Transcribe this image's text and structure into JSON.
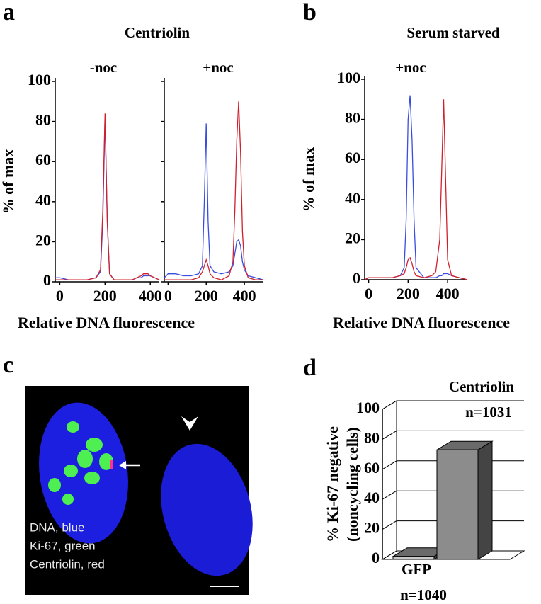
{
  "panel_labels": [
    "a",
    "b",
    "c",
    "d"
  ],
  "image": {
    "captions": [
      "DNA, blue",
      "Ki-67, green",
      "Centriolin, red"
    ]
  },
  "chart_data": [
    {
      "type": "line",
      "title": "Centriolin",
      "subtitle": "-noc",
      "y_label": "% of max",
      "x_label": "Relative DNA fluorescence",
      "x": [
        -20,
        0,
        40,
        80,
        120,
        160,
        180,
        190,
        200,
        210,
        220,
        240,
        280,
        320,
        340,
        360,
        370,
        380,
        390,
        400,
        420,
        440
      ],
      "series": [
        {
          "color": "#3a4de0",
          "values": [
            2,
            2,
            1,
            1,
            1,
            2,
            5,
            30,
            82,
            30,
            4,
            1,
            1,
            1,
            2,
            2,
            3,
            3,
            3,
            3,
            2,
            1
          ]
        },
        {
          "color": "#d0202e",
          "values": [
            1,
            1,
            1,
            1,
            1,
            2,
            6,
            35,
            84,
            30,
            4,
            1,
            1,
            1,
            2,
            3,
            4,
            4,
            4,
            3,
            2,
            1
          ]
        }
      ],
      "xlim": [
        -20,
        440
      ],
      "xticks": [
        0,
        200,
        400
      ],
      "ylim": [
        0,
        100
      ],
      "yticks": [
        0,
        20,
        40,
        60,
        80,
        100
      ]
    },
    {
      "type": "line",
      "subtitle": "+noc",
      "x": [
        -20,
        0,
        40,
        80,
        120,
        160,
        180,
        190,
        200,
        210,
        220,
        240,
        280,
        320,
        340,
        350,
        360,
        370,
        380,
        390,
        400,
        420,
        460,
        500
      ],
      "series": [
        {
          "color": "#3a4de0",
          "values": [
            2,
            4,
            4,
            3,
            3,
            4,
            8,
            40,
            79,
            30,
            8,
            5,
            4,
            5,
            8,
            14,
            20,
            21,
            18,
            10,
            6,
            3,
            2,
            1
          ]
        },
        {
          "color": "#d0202e",
          "values": [
            1,
            1,
            1,
            1,
            1,
            2,
            5,
            8,
            11,
            8,
            4,
            2,
            1,
            3,
            10,
            35,
            70,
            90,
            65,
            25,
            8,
            2,
            1,
            1
          ]
        }
      ],
      "xlim": [
        -20,
        500
      ],
      "xticks": [
        0,
        200,
        400
      ],
      "ylim": [
        0,
        100
      ],
      "yticks": [
        0,
        20,
        40,
        60,
        80,
        100
      ]
    },
    {
      "type": "line",
      "title": "Serum starved",
      "subtitle": "+noc",
      "y_label": "% of max",
      "x_label": "Relative DNA fluorescence",
      "x": [
        -20,
        0,
        40,
        80,
        120,
        160,
        180,
        190,
        200,
        210,
        220,
        230,
        240,
        280,
        320,
        340,
        360,
        370,
        380,
        390,
        400,
        420,
        460,
        500
      ],
      "series": [
        {
          "color": "#3a4de0",
          "values": [
            0,
            1,
            1,
            1,
            1,
            2,
            6,
            30,
            80,
            92,
            70,
            30,
            6,
            1,
            1,
            1,
            2,
            2,
            3,
            3,
            3,
            2,
            1,
            0
          ]
        },
        {
          "color": "#d0202e",
          "values": [
            0,
            1,
            1,
            1,
            1,
            2,
            3,
            6,
            10,
            11,
            8,
            4,
            2,
            1,
            2,
            4,
            20,
            55,
            90,
            50,
            10,
            2,
            1,
            0
          ]
        }
      ],
      "xlim": [
        -20,
        500
      ],
      "xticks": [
        0,
        200,
        400
      ],
      "ylim": [
        0,
        100
      ],
      "yticks": [
        0,
        20,
        40,
        60,
        80,
        100
      ]
    },
    {
      "type": "bar3d",
      "y_label": [
        "% Ki-67 negative",
        "(noncycling cells)"
      ],
      "categories": [
        "GFP",
        "Centriolin"
      ],
      "n_labels": [
        "n=1040",
        "n=1031"
      ],
      "values": [
        2,
        73
      ],
      "colors": [
        "#c8c8c8",
        "#8c8c8c"
      ],
      "ylim": [
        0,
        100
      ],
      "yticks": [
        0,
        20,
        40,
        60,
        80,
        100
      ]
    }
  ]
}
